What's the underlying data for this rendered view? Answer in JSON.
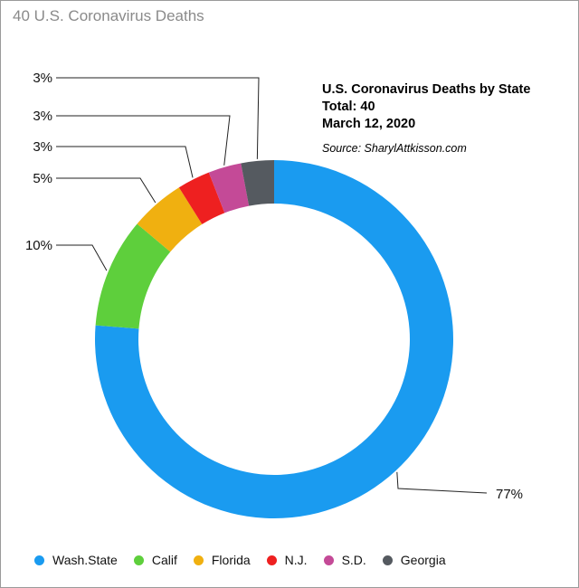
{
  "page_title": "40 U.S. Coronavirus Deaths",
  "info": {
    "title": "U.S. Coronavirus Deaths by State",
    "total": "Total: 40",
    "date": "March 12, 2020",
    "source": "Source: SharylAttkisson.com"
  },
  "chart_data": {
    "type": "pie",
    "style": "donut",
    "title": "U.S. Coronavirus Deaths by State",
    "categories": [
      "Wash.State",
      "Calif",
      "Florida",
      "N.J.",
      "S.D.",
      "Georgia"
    ],
    "values": [
      77,
      10,
      5,
      3,
      3,
      3
    ],
    "labels": [
      "77%",
      "10%",
      "5%",
      "3%",
      "3%",
      "3%"
    ],
    "colors": [
      "#1a9bf0",
      "#5ecf3c",
      "#f0b010",
      "#ee2020",
      "#c44a97",
      "#555a60"
    ],
    "legend_position": "bottom"
  }
}
